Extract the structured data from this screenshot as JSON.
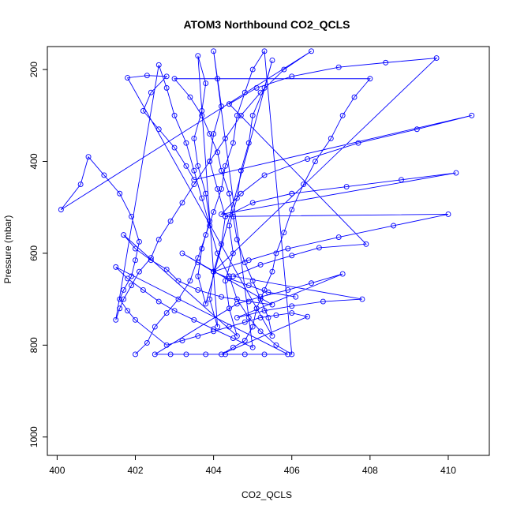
{
  "chart_data": {
    "type": "scatter",
    "title": "ATOM3 Northbound CO2_QCLS",
    "xlabel": "CO2_QCLS",
    "ylabel": "Pressure (mbar)",
    "xlim": [
      399.75,
      411.05
    ],
    "ylim": [
      1040,
      150
    ],
    "y_axis_reversed": true,
    "x_ticks": [
      400,
      402,
      404,
      406,
      408,
      410
    ],
    "y_ticks": [
      200,
      400,
      600,
      800,
      1000
    ],
    "grid": false,
    "legend": "none",
    "style": "points connected by lines (open circles)",
    "series": [
      {
        "color": "#0000ff",
        "points": [
          [
            402.0,
            820
          ],
          [
            402.3,
            795
          ],
          [
            402.5,
            760
          ],
          [
            402.8,
            730
          ],
          [
            403.1,
            700
          ],
          [
            403.4,
            660
          ],
          [
            403.6,
            610
          ],
          [
            403.8,
            560
          ],
          [
            404.0,
            510
          ],
          [
            404.2,
            460
          ],
          [
            404.3,
            410
          ],
          [
            404.5,
            360
          ],
          [
            404.6,
            300
          ],
          [
            404.8,
            250
          ],
          [
            405.0,
            200
          ],
          [
            405.3,
            160
          ],
          [
            406.0,
            820
          ],
          [
            405.6,
            800
          ],
          [
            405.2,
            770
          ],
          [
            404.9,
            740
          ],
          [
            404.6,
            700
          ],
          [
            404.4,
            650
          ],
          [
            404.1,
            600
          ],
          [
            403.9,
            540
          ],
          [
            403.7,
            480
          ],
          [
            403.5,
            420
          ],
          [
            403.3,
            360
          ],
          [
            403.0,
            300
          ],
          [
            402.8,
            240
          ],
          [
            402.6,
            190
          ],
          [
            401.5,
            745
          ],
          [
            401.6,
            720
          ],
          [
            401.7,
            700
          ],
          [
            401.9,
            670
          ],
          [
            402.1,
            640
          ],
          [
            402.4,
            610
          ],
          [
            402.6,
            570
          ],
          [
            402.9,
            530
          ],
          [
            403.2,
            490
          ],
          [
            403.5,
            450
          ],
          [
            403.9,
            400
          ],
          [
            404.3,
            350
          ],
          [
            404.7,
            300
          ],
          [
            405.2,
            250
          ],
          [
            405.8,
            200
          ],
          [
            406.5,
            160
          ],
          [
            400.1,
            505
          ],
          [
            400.6,
            450
          ],
          [
            400.8,
            390
          ],
          [
            401.2,
            430
          ],
          [
            401.6,
            470
          ],
          [
            401.9,
            520
          ],
          [
            402.1,
            575
          ],
          [
            402.0,
            615
          ],
          [
            401.9,
            650
          ],
          [
            401.7,
            680
          ],
          [
            401.6,
            700
          ],
          [
            401.8,
            725
          ],
          [
            402.0,
            745
          ],
          [
            402.8,
            800
          ],
          [
            403.2,
            790
          ],
          [
            403.6,
            780
          ],
          [
            404.0,
            770
          ],
          [
            404.4,
            760
          ],
          [
            404.8,
            750
          ],
          [
            405.2,
            740
          ],
          [
            405.6,
            735
          ],
          [
            406.0,
            730
          ],
          [
            406.4,
            738
          ],
          [
            404.2,
            820
          ],
          [
            404.5,
            805
          ],
          [
            404.8,
            790
          ],
          [
            405.0,
            760
          ],
          [
            405.1,
            720
          ],
          [
            405.3,
            680
          ],
          [
            405.5,
            640
          ],
          [
            405.6,
            600
          ],
          [
            405.8,
            555
          ],
          [
            406.0,
            505
          ],
          [
            406.3,
            450
          ],
          [
            406.6,
            400
          ],
          [
            407.0,
            350
          ],
          [
            407.3,
            300
          ],
          [
            407.6,
            260
          ],
          [
            408.0,
            220
          ],
          [
            403.0,
            220
          ],
          [
            403.4,
            260
          ],
          [
            403.7,
            300
          ],
          [
            403.9,
            340
          ],
          [
            404.1,
            380
          ],
          [
            404.2,
            420
          ],
          [
            404.4,
            470
          ],
          [
            404.5,
            520
          ],
          [
            404.6,
            570
          ],
          [
            404.8,
            620
          ],
          [
            405.0,
            660
          ],
          [
            405.2,
            700
          ],
          [
            405.4,
            740
          ],
          [
            405.5,
            780
          ],
          [
            401.8,
            218
          ],
          [
            402.3,
            213
          ],
          [
            402.8,
            215
          ],
          [
            402.4,
            250
          ],
          [
            402.2,
            290
          ],
          [
            402.6,
            330
          ],
          [
            403.0,
            370
          ],
          [
            403.3,
            410
          ],
          [
            403.5,
            440
          ],
          [
            410.6,
            300
          ],
          [
            409.2,
            330
          ],
          [
            407.7,
            360
          ],
          [
            406.4,
            395
          ],
          [
            405.3,
            430
          ],
          [
            404.7,
            470
          ],
          [
            404.2,
            515
          ],
          [
            410.2,
            425
          ],
          [
            408.8,
            440
          ],
          [
            407.4,
            455
          ],
          [
            406.0,
            470
          ],
          [
            405.0,
            490
          ],
          [
            404.3,
            520
          ],
          [
            410.0,
            515
          ],
          [
            408.6,
            540
          ],
          [
            407.2,
            565
          ],
          [
            405.9,
            590
          ],
          [
            404.9,
            615
          ],
          [
            404.0,
            640
          ],
          [
            409.7,
            175
          ],
          [
            408.4,
            185
          ],
          [
            407.2,
            195
          ],
          [
            406.0,
            215
          ],
          [
            405.1,
            240
          ],
          [
            404.4,
            275
          ],
          [
            407.9,
            580
          ],
          [
            406.7,
            588
          ],
          [
            406.0,
            605
          ],
          [
            405.2,
            625
          ],
          [
            404.5,
            650
          ],
          [
            407.8,
            700
          ],
          [
            406.8,
            705
          ],
          [
            406.0,
            715
          ],
          [
            405.3,
            725
          ],
          [
            404.6,
            740
          ],
          [
            407.3,
            645
          ],
          [
            406.5,
            665
          ],
          [
            405.9,
            680
          ],
          [
            405.2,
            695
          ],
          [
            404.6,
            710
          ],
          [
            402.5,
            820
          ],
          [
            402.9,
            820
          ],
          [
            403.3,
            820
          ],
          [
            403.8,
            820
          ],
          [
            404.3,
            820
          ],
          [
            404.8,
            820
          ],
          [
            405.3,
            820
          ],
          [
            405.9,
            820
          ],
          [
            401.5,
            630
          ],
          [
            401.8,
            655
          ],
          [
            402.2,
            680
          ],
          [
            402.6,
            705
          ],
          [
            403.0,
            725
          ],
          [
            403.5,
            745
          ],
          [
            404.0,
            765
          ],
          [
            404.5,
            785
          ],
          [
            405.0,
            805
          ],
          [
            404.0,
            160
          ],
          [
            404.1,
            220
          ],
          [
            404.2,
            280
          ],
          [
            404.0,
            340
          ],
          [
            403.9,
            400
          ],
          [
            404.1,
            460
          ],
          [
            404.3,
            520
          ],
          [
            404.2,
            580
          ],
          [
            404.0,
            640
          ],
          [
            403.9,
            700
          ],
          [
            404.1,
            760
          ],
          [
            403.6,
            170
          ],
          [
            403.8,
            230
          ],
          [
            403.7,
            290
          ],
          [
            403.5,
            350
          ],
          [
            403.6,
            410
          ],
          [
            403.8,
            470
          ],
          [
            403.9,
            530
          ],
          [
            403.7,
            590
          ],
          [
            403.6,
            650
          ],
          [
            403.8,
            710
          ],
          [
            405.5,
            180
          ],
          [
            405.3,
            240
          ],
          [
            405.0,
            300
          ],
          [
            404.9,
            360
          ],
          [
            404.7,
            420
          ],
          [
            404.6,
            480
          ],
          [
            404.4,
            540
          ],
          [
            404.5,
            600
          ],
          [
            404.3,
            660
          ],
          [
            404.4,
            720
          ],
          [
            404.6,
            780
          ],
          [
            401.7,
            560
          ],
          [
            402.0,
            590
          ],
          [
            402.4,
            615
          ],
          [
            402.8,
            635
          ],
          [
            403.1,
            660
          ],
          [
            403.6,
            680
          ],
          [
            404.2,
            695
          ],
          [
            404.9,
            705
          ],
          [
            405.5,
            712
          ],
          [
            403.2,
            600
          ],
          [
            403.6,
            620
          ],
          [
            404.0,
            640
          ],
          [
            404.4,
            655
          ],
          [
            404.9,
            670
          ],
          [
            405.4,
            685
          ],
          [
            406.1,
            695
          ]
        ]
      }
    ]
  }
}
